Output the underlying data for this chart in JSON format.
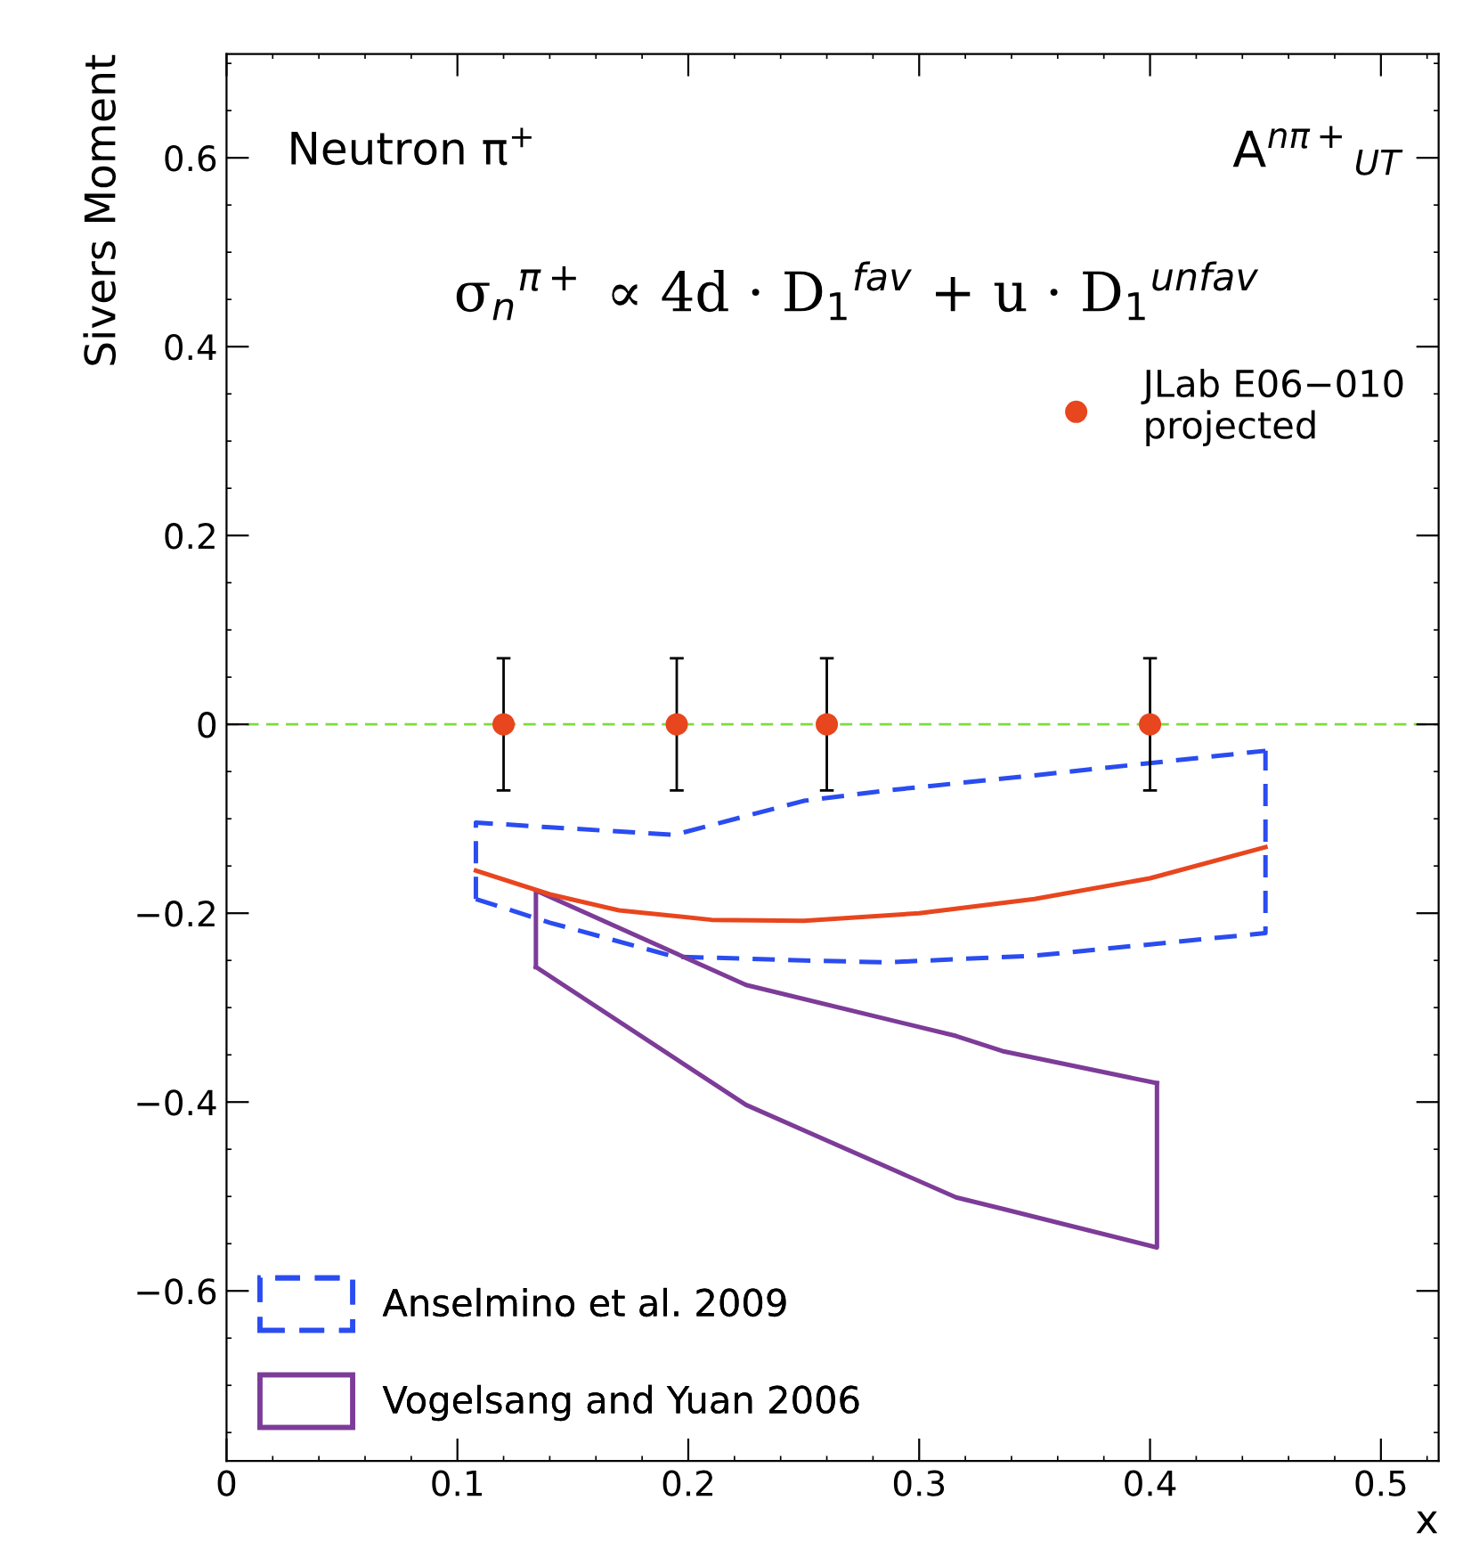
{
  "chart_data": {
    "type": "scatter",
    "xlabel": "x",
    "ylabel": "Sivers Moment",
    "xlim": [
      0,
      0.525
    ],
    "ylim": [
      -0.78,
      0.71
    ],
    "xticks": [
      0,
      0.1,
      0.2,
      0.3,
      0.4,
      0.5
    ],
    "yticks": [
      {
        "value": -0.6,
        "label": "−0.6"
      },
      {
        "value": -0.4,
        "label": "−0.4"
      },
      {
        "value": -0.2,
        "label": "−0.2"
      },
      0,
      0.2,
      0.4,
      0.6
    ],
    "grid": false,
    "legend": "bottom left",
    "ref_lines": [
      {
        "axis": "y",
        "value": 0,
        "color": "#7fdc3c",
        "line_style": "dashed"
      }
    ],
    "annotations": [
      "Neutron π$^{+}$",
      "A$^{nπ+}$$_{UT}$",
      "σ$_{n}$$^{π+}$ ∝ 4d · D$_{1}$$^{fav}$ + u · D$_{1}$$^{unfav}$"
    ],
    "series": [
      {
        "name": "JLab E06−010\nprojected",
        "color": "#e8461e",
        "marker": "circle",
        "x": [
          0.12,
          0.195,
          0.26,
          0.4
        ],
        "values": [
          0,
          0,
          0,
          0
        ],
        "errors": [
          0.07,
          0.07,
          0.07,
          0.07
        ]
      },
      {
        "type": "line",
        "name": "Anselmino et al. 2009",
        "color": "#2a4cf0",
        "line_style": "dashed",
        "x": [
          0.108,
          0.108,
          0.14,
          0.194,
          0.25,
          0.286,
          0.35,
          0.45
        ],
        "values": [
          -0.185,
          -0.104,
          -0.109,
          -0.117,
          -0.081,
          -0.07,
          -0.054,
          -0.028
        ]
      },
      {
        "type": "line",
        "color": "#2a4cf0",
        "line_style": "dashed",
        "x": [
          0.108,
          0.14,
          0.194,
          0.25,
          0.286,
          0.35,
          0.45,
          0.45
        ],
        "values": [
          -0.185,
          -0.21,
          -0.246,
          -0.25,
          -0.252,
          -0.245,
          -0.221,
          -0.028
        ]
      },
      {
        "type": "line",
        "name": "Vogelsang and Yuan 2006",
        "color": "#7d3c98",
        "line_style": "solid",
        "x": [
          0.134,
          0.134,
          0.225,
          0.316,
          0.336,
          0.403
        ],
        "values": [
          -0.257,
          -0.176,
          -0.276,
          -0.33,
          -0.346,
          -0.38
        ]
      },
      {
        "type": "line",
        "color": "#7d3c98",
        "line_style": "solid",
        "x": [
          0.134,
          0.225,
          0.316,
          0.336,
          0.403,
          0.403
        ],
        "values": [
          -0.257,
          -0.403,
          -0.501,
          -0.513,
          -0.554,
          -0.38
        ]
      },
      {
        "type": "line",
        "color": "#e8461e",
        "line_style": "solid",
        "x": [
          0.108,
          0.14,
          0.17,
          0.21,
          0.25,
          0.3,
          0.35,
          0.4,
          0.45
        ],
        "values": [
          -0.155,
          -0.18,
          -0.197,
          -0.207,
          -0.208,
          -0.2,
          -0.185,
          -0.163,
          -0.13
        ]
      }
    ]
  }
}
